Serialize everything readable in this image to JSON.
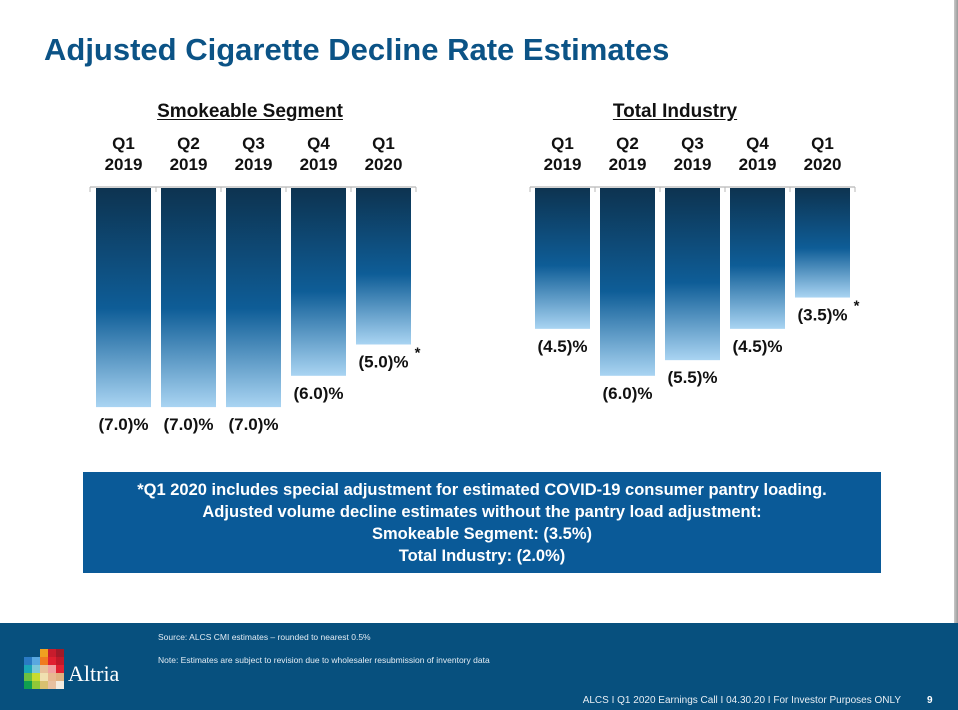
{
  "slide": {
    "title": "Adjusted Cigarette Decline Rate Estimates",
    "note_box": {
      "lines": [
        "*Q1 2020 includes special adjustment for estimated COVID-19 consumer pantry loading.",
        "Adjusted volume decline estimates without the pantry load adjustment:",
        "Smokeable Segment: (3.5%)",
        "Total Industry: (2.0%)"
      ]
    },
    "footer": {
      "brand": "Altria",
      "source": "Source: ALCS CMI estimates – rounded to nearest 0.5%",
      "note": "Note: Estimates are subject to revision due to wholesaler resubmission of inventory data",
      "footline": "ALCS I Q1 2020 Earnings Call I 04.30.20 I For Investor Purposes ONLY",
      "page_number": "9"
    },
    "colors": {
      "title": "#0b5386",
      "bar_top": "#0d3350",
      "bar_mid": "#0e5d97",
      "bar_bottom": "#a9d4f2",
      "note_box": "#0a5a98",
      "footer": "#07507e"
    }
  },
  "chart_data": [
    {
      "type": "bar",
      "title": "Smokeable Segment",
      "categories": [
        "Q1\n2019",
        "Q2\n2019",
        "Q3\n2019",
        "Q4\n2019",
        "Q1\n2020"
      ],
      "category_lines": [
        [
          "Q1",
          "2019"
        ],
        [
          "Q2",
          "2019"
        ],
        [
          "Q3",
          "2019"
        ],
        [
          "Q4",
          "2019"
        ],
        [
          "Q1",
          "2020"
        ]
      ],
      "values": [
        -7.0,
        -7.0,
        -7.0,
        -6.0,
        -5.0
      ],
      "labels": [
        "(7.0)%",
        "(7.0)%",
        "(7.0)%",
        "(6.0)%",
        "(5.0)%"
      ],
      "annotations": [
        "",
        "",
        "",
        "",
        "*"
      ],
      "xlabel": "",
      "ylabel": "",
      "ylim": [
        -7.0,
        0
      ],
      "orientation": "bars hang downward from top axis",
      "grid": false,
      "legend": "none"
    },
    {
      "type": "bar",
      "title": "Total Industry",
      "categories": [
        "Q1\n2019",
        "Q2\n2019",
        "Q3\n2019",
        "Q4\n2019",
        "Q1\n2020"
      ],
      "category_lines": [
        [
          "Q1",
          "2019"
        ],
        [
          "Q2",
          "2019"
        ],
        [
          "Q3",
          "2019"
        ],
        [
          "Q4",
          "2019"
        ],
        [
          "Q1",
          "2020"
        ]
      ],
      "values": [
        -4.5,
        -6.0,
        -5.5,
        -4.5,
        -3.5
      ],
      "labels": [
        "(4.5)%",
        "(6.0)%",
        "(5.5)%",
        "(4.5)%",
        "(3.5)%"
      ],
      "annotations": [
        "",
        "",
        "",
        "",
        "*"
      ],
      "xlabel": "",
      "ylabel": "",
      "ylim": [
        -7.0,
        0
      ],
      "orientation": "bars hang downward from top axis",
      "grid": false,
      "legend": "none"
    }
  ]
}
